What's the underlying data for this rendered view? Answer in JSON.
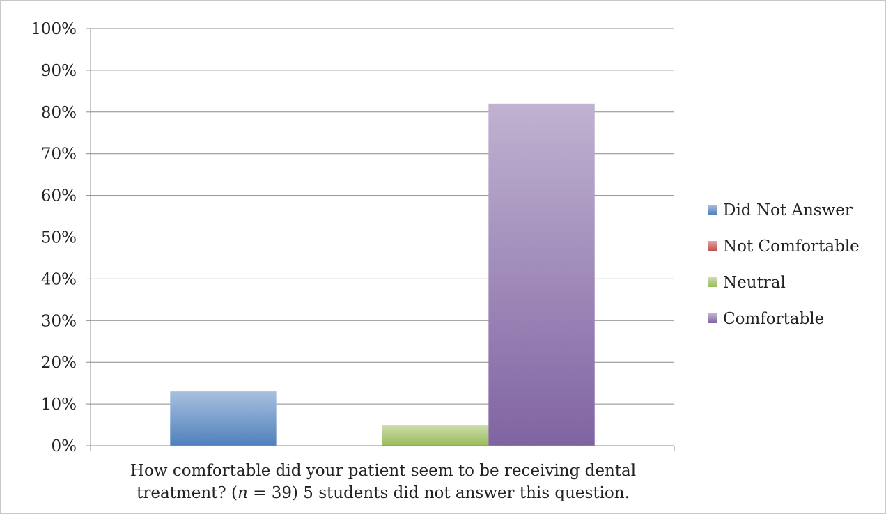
{
  "chart_data": {
    "type": "bar",
    "categories": [
      "How comfortable did your patient seem to be receiving dental treatment? (n = 39) 5 students did not answer this question."
    ],
    "series": [
      {
        "name": "Did Not Answer",
        "values": [
          13
        ],
        "color": "#4f81bd"
      },
      {
        "name": "Not Comfortable",
        "values": [
          0
        ],
        "color": "#c0504d"
      },
      {
        "name": "Neutral",
        "values": [
          5
        ],
        "color": "#9bbb59"
      },
      {
        "name": "Comfortable",
        "values": [
          82
        ],
        "color": "#8064a2"
      }
    ],
    "ylim": [
      0,
      100
    ],
    "yticks": [
      "0%",
      "10%",
      "20%",
      "30%",
      "40%",
      "50%",
      "60%",
      "70%",
      "80%",
      "90%",
      "100%"
    ],
    "grid": true,
    "legend_position": "right",
    "xlabel_line1": "How comfortable did your patient seem to be receiving dental",
    "xlabel_line2_pre": "treatment? (",
    "xlabel_line2_italic": "n",
    "xlabel_line2_post": " = 39) 5 students did not answer this question."
  }
}
